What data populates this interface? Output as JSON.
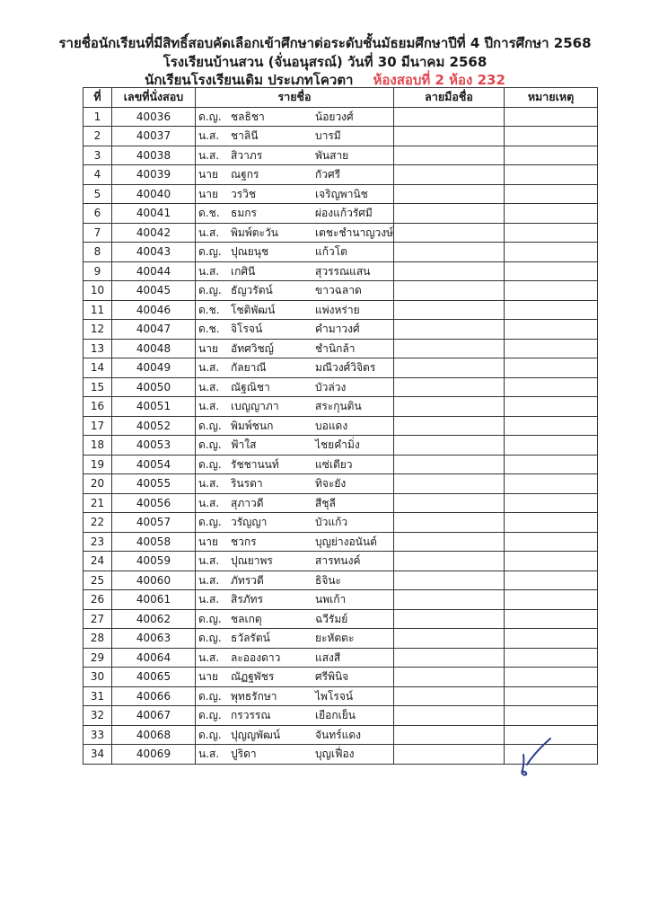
{
  "header": {
    "line1": "รายชื่อนักเรียนที่มีสิทธิ์สอบคัดเลือกเข้าศึกษาต่อระดับชั้นมัธยมศึกษาปีที่ 4 ปีการศึกษา  2568",
    "line2": "โรงเรียนบ้านสวน (จั่นอนุสรณ์)  วันที่ 30 มีนาคม 2568",
    "line3": "นักเรียนโรงเรียนเดิม ประเภทโควตา",
    "room": "ห้องสอบที่ 2  ห้อง 232"
  },
  "colors": {
    "room_text": "#e0484e",
    "signature_ink": "#2a3f8f"
  },
  "table": {
    "columns": [
      "ที่",
      "เลขที่นั่งสอบ",
      "รายชื่อ",
      "ลายมือชื่อ",
      "หมายเหตุ"
    ],
    "rows": [
      {
        "no": "1",
        "seat": "40036",
        "title": "ด.ญ.",
        "first": "ชลธิชา",
        "last": "น้อยวงศ์"
      },
      {
        "no": "2",
        "seat": "40037",
        "title": "น.ส.",
        "first": "ชาลินี",
        "last": "บารมี"
      },
      {
        "no": "3",
        "seat": "40038",
        "title": "น.ส.",
        "first": "สิวาภร",
        "last": "พันสาย"
      },
      {
        "no": "4",
        "seat": "40039",
        "title": "นาย",
        "first": "ณฐกร",
        "last": "กัวศรี"
      },
      {
        "no": "5",
        "seat": "40040",
        "title": "นาย",
        "first": "วรวิช",
        "last": "เจริญพานิช"
      },
      {
        "no": "6",
        "seat": "40041",
        "title": "ด.ช.",
        "first": "ธมกร",
        "last": "ผ่องแก้วรัศมี"
      },
      {
        "no": "7",
        "seat": "40042",
        "title": "น.ส.",
        "first": "พิมพ์ตะวัน",
        "last": "เตชะชำนาญวงษ์"
      },
      {
        "no": "8",
        "seat": "40043",
        "title": "ด.ญ.",
        "first": "ปุณยนุช",
        "last": "แก้วโต"
      },
      {
        "no": "9",
        "seat": "40044",
        "title": "น.ส.",
        "first": "เกศินี",
        "last": "สุวรรณแสน"
      },
      {
        "no": "10",
        "seat": "40045",
        "title": "ด.ญ.",
        "first": "ธัญวรัตน์",
        "last": "ขาวฉลาด"
      },
      {
        "no": "11",
        "seat": "40046",
        "title": "ด.ช.",
        "first": "โชติพัฒน์",
        "last": "แพ่งหร่าย"
      },
      {
        "no": "12",
        "seat": "40047",
        "title": "ด.ช.",
        "first": "จิโรจน์",
        "last": "คำมาวงศ์"
      },
      {
        "no": "13",
        "seat": "40048",
        "title": "นาย",
        "first": "อัทศวิชญ์",
        "last": "ชำนิกล้า"
      },
      {
        "no": "14",
        "seat": "40049",
        "title": "น.ส.",
        "first": "กัลยาณี",
        "last": "มณีวงศ์วิจิตร"
      },
      {
        "no": "15",
        "seat": "40050",
        "title": "น.ส.",
        "first": "ณัฐณิชา",
        "last": "บัวล่วง"
      },
      {
        "no": "16",
        "seat": "40051",
        "title": "น.ส.",
        "first": "เบญญาภา",
        "last": "สระกุนติน"
      },
      {
        "no": "17",
        "seat": "40052",
        "title": "ด.ญ.",
        "first": "พิมพ์ชนก",
        "last": "บอแดง"
      },
      {
        "no": "18",
        "seat": "40053",
        "title": "ด.ญ.",
        "first": "ฟ้าใส",
        "last": "ไชยคำมิ่ง"
      },
      {
        "no": "19",
        "seat": "40054",
        "title": "ด.ญ.",
        "first": "รัชชานนท์",
        "last": "แซ่เตียว"
      },
      {
        "no": "20",
        "seat": "40055",
        "title": "น.ส.",
        "first": "รินรดา",
        "last": "ทิจะยัง"
      },
      {
        "no": "21",
        "seat": "40056",
        "title": "น.ส.",
        "first": "สุภาวดี",
        "last": "สีชุลี"
      },
      {
        "no": "22",
        "seat": "40057",
        "title": "ด.ญ.",
        "first": "วรัญญา",
        "last": "บัวแก้ว"
      },
      {
        "no": "23",
        "seat": "40058",
        "title": "นาย",
        "first": "ชวกร",
        "last": "บุญย่างอนันต์"
      },
      {
        "no": "24",
        "seat": "40059",
        "title": "น.ส.",
        "first": "ปุณยาพร",
        "last": "สารทนงค์"
      },
      {
        "no": "25",
        "seat": "40060",
        "title": "น.ส.",
        "first": "ภัทรวดี",
        "last": "ธิจินะ"
      },
      {
        "no": "26",
        "seat": "40061",
        "title": "น.ส.",
        "first": "สิรภัทร",
        "last": "นพเก้า"
      },
      {
        "no": "27",
        "seat": "40062",
        "title": "ด.ญ.",
        "first": "ชลเกตุ",
        "last": "ฉวีรัมย์"
      },
      {
        "no": "28",
        "seat": "40063",
        "title": "ด.ญ.",
        "first": "ธวัลรัตน์",
        "last": "ยะหัตตะ"
      },
      {
        "no": "29",
        "seat": "40064",
        "title": "น.ส.",
        "first": "ละอองดาว",
        "last": "แสงสี"
      },
      {
        "no": "30",
        "seat": "40065",
        "title": "นาย",
        "first": "ณัฏฐพัชร",
        "last": "ศรีพินิจ"
      },
      {
        "no": "31",
        "seat": "40066",
        "title": "ด.ญ.",
        "first": "พุทธรักษา",
        "last": "ไพโรจน์"
      },
      {
        "no": "32",
        "seat": "40067",
        "title": "ด.ญ.",
        "first": "กรวรรณ",
        "last": "เยือกเย็น"
      },
      {
        "no": "33",
        "seat": "40068",
        "title": "ด.ญ.",
        "first": "ปุญญพัฒน์",
        "last": "จันทร์แดง"
      },
      {
        "no": "34",
        "seat": "40069",
        "title": "น.ส.",
        "first": "ปูริดา",
        "last": "บุญเฟื่อง"
      }
    ]
  }
}
